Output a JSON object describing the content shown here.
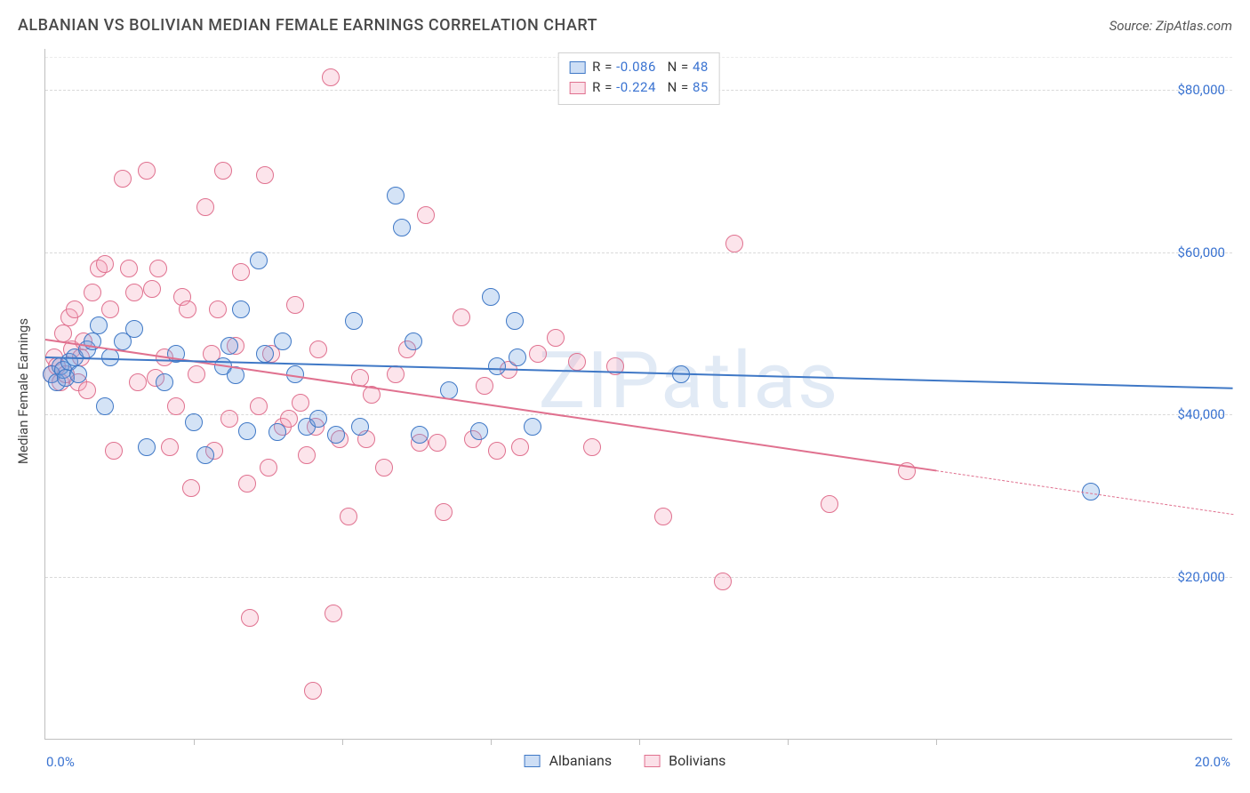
{
  "title": "ALBANIAN VS BOLIVIAN MEDIAN FEMALE EARNINGS CORRELATION CHART",
  "source_label": "Source: ZipAtlas.com",
  "watermark": "ZIPatlas",
  "yaxis_title": "Median Female Earnings",
  "chart": {
    "type": "scatter",
    "xlim": [
      0,
      20
    ],
    "ylim": [
      0,
      85000
    ],
    "x_start_label": "0.0%",
    "x_end_label": "20.0%",
    "x_tick_positions": [
      2.5,
      5.0,
      7.5,
      10.0,
      12.5,
      15.0
    ],
    "y_gridlines": [
      20000,
      40000,
      60000,
      80000
    ],
    "y_tick_labels": [
      "$20,000",
      "$40,000",
      "$60,000",
      "$80,000"
    ],
    "background_color": "#ffffff",
    "grid_color": "#d9d9d9",
    "axis_color": "#bfbfbf",
    "tick_label_color": "#3a73d1",
    "point_radius": 10,
    "point_border_width": 1.4,
    "point_fill_opacity": 0.3,
    "watermark_color": "rgba(120,160,210,0.22)",
    "watermark_fontsize": 88
  },
  "series": {
    "albanians": {
      "label": "Albanians",
      "color": "#6fa1e2",
      "border_color": "#3f78c6",
      "R": "-0.086",
      "N": "48",
      "trend": {
        "x1": 0.0,
        "y1": 47200,
        "x2": 20.0,
        "y2": 43400,
        "solid_until_x": 20.0
      },
      "points": [
        [
          0.1,
          45000
        ],
        [
          0.2,
          44000
        ],
        [
          0.25,
          46000
        ],
        [
          0.3,
          45500
        ],
        [
          0.35,
          44500
        ],
        [
          0.4,
          46500
        ],
        [
          0.5,
          47000
        ],
        [
          0.55,
          45000
        ],
        [
          0.7,
          48000
        ],
        [
          0.8,
          49000
        ],
        [
          0.9,
          51000
        ],
        [
          1.0,
          41000
        ],
        [
          1.1,
          47000
        ],
        [
          1.3,
          49000
        ],
        [
          1.5,
          50500
        ],
        [
          1.7,
          36000
        ],
        [
          2.0,
          44000
        ],
        [
          2.2,
          47500
        ],
        [
          2.5,
          39000
        ],
        [
          2.7,
          35000
        ],
        [
          3.0,
          46000
        ],
        [
          3.1,
          48500
        ],
        [
          3.2,
          44800
        ],
        [
          3.3,
          53000
        ],
        [
          3.4,
          38000
        ],
        [
          3.6,
          59000
        ],
        [
          3.7,
          47500
        ],
        [
          3.9,
          37800
        ],
        [
          4.0,
          49000
        ],
        [
          4.2,
          45000
        ],
        [
          4.4,
          38500
        ],
        [
          4.6,
          39500
        ],
        [
          4.9,
          37500
        ],
        [
          5.2,
          51500
        ],
        [
          5.3,
          38500
        ],
        [
          5.9,
          67000
        ],
        [
          6.0,
          63000
        ],
        [
          6.2,
          49000
        ],
        [
          6.3,
          37500
        ],
        [
          6.8,
          43000
        ],
        [
          7.3,
          38000
        ],
        [
          7.5,
          54500
        ],
        [
          7.6,
          46000
        ],
        [
          7.9,
          51500
        ],
        [
          7.95,
          47000
        ],
        [
          8.2,
          38500
        ],
        [
          10.7,
          45000
        ],
        [
          17.6,
          30500
        ]
      ]
    },
    "bolivians": {
      "label": "Bolivians",
      "color": "#f4a6bd",
      "border_color": "#e0718f",
      "R": "-0.224",
      "N": "85",
      "trend": {
        "x1": 0.0,
        "y1": 49300,
        "x2": 20.0,
        "y2": 27800,
        "solid_until_x": 15.0
      },
      "points": [
        [
          0.1,
          45000
        ],
        [
          0.15,
          47000
        ],
        [
          0.2,
          46000
        ],
        [
          0.25,
          44000
        ],
        [
          0.3,
          50000
        ],
        [
          0.35,
          45000
        ],
        [
          0.4,
          52000
        ],
        [
          0.45,
          48000
        ],
        [
          0.5,
          53000
        ],
        [
          0.55,
          44000
        ],
        [
          0.6,
          47000
        ],
        [
          0.65,
          49000
        ],
        [
          0.7,
          43000
        ],
        [
          0.8,
          55000
        ],
        [
          0.9,
          58000
        ],
        [
          1.0,
          58500
        ],
        [
          1.1,
          53000
        ],
        [
          1.15,
          35500
        ],
        [
          1.3,
          69000
        ],
        [
          1.4,
          58000
        ],
        [
          1.5,
          55000
        ],
        [
          1.55,
          44000
        ],
        [
          1.7,
          70000
        ],
        [
          1.8,
          55500
        ],
        [
          1.85,
          44500
        ],
        [
          1.9,
          58000
        ],
        [
          2.0,
          47000
        ],
        [
          2.1,
          36000
        ],
        [
          2.2,
          41000
        ],
        [
          2.3,
          54500
        ],
        [
          2.4,
          53000
        ],
        [
          2.45,
          31000
        ],
        [
          2.55,
          45000
        ],
        [
          2.7,
          65500
        ],
        [
          2.8,
          47500
        ],
        [
          2.85,
          35500
        ],
        [
          2.9,
          53000
        ],
        [
          3.0,
          70000
        ],
        [
          3.1,
          39500
        ],
        [
          3.2,
          48500
        ],
        [
          3.3,
          57500
        ],
        [
          3.4,
          31500
        ],
        [
          3.45,
          15000
        ],
        [
          3.6,
          41000
        ],
        [
          3.7,
          69500
        ],
        [
          3.75,
          33500
        ],
        [
          3.8,
          47500
        ],
        [
          4.0,
          38500
        ],
        [
          4.1,
          39500
        ],
        [
          4.2,
          53500
        ],
        [
          4.3,
          41500
        ],
        [
          4.4,
          35000
        ],
        [
          4.5,
          6000
        ],
        [
          4.55,
          38500
        ],
        [
          4.6,
          48000
        ],
        [
          4.8,
          81500
        ],
        [
          4.85,
          15500
        ],
        [
          4.95,
          37000
        ],
        [
          5.1,
          27500
        ],
        [
          5.3,
          44500
        ],
        [
          5.4,
          37000
        ],
        [
          5.5,
          42500
        ],
        [
          5.7,
          33500
        ],
        [
          5.9,
          45000
        ],
        [
          6.1,
          48000
        ],
        [
          6.3,
          36500
        ],
        [
          6.4,
          64500
        ],
        [
          6.6,
          36500
        ],
        [
          6.7,
          28000
        ],
        [
          7.0,
          52000
        ],
        [
          7.2,
          37000
        ],
        [
          7.4,
          43500
        ],
        [
          7.6,
          35500
        ],
        [
          7.8,
          45500
        ],
        [
          8.0,
          36000
        ],
        [
          8.3,
          47500
        ],
        [
          8.6,
          49500
        ],
        [
          8.95,
          46500
        ],
        [
          9.2,
          36000
        ],
        [
          9.6,
          46000
        ],
        [
          10.4,
          27500
        ],
        [
          11.4,
          19500
        ],
        [
          11.6,
          61000
        ],
        [
          13.2,
          29000
        ],
        [
          14.5,
          33000
        ]
      ]
    }
  },
  "legend_top_order": [
    "albanians",
    "bolivians"
  ],
  "legend_bottom_order": [
    "albanians",
    "bolivians"
  ]
}
